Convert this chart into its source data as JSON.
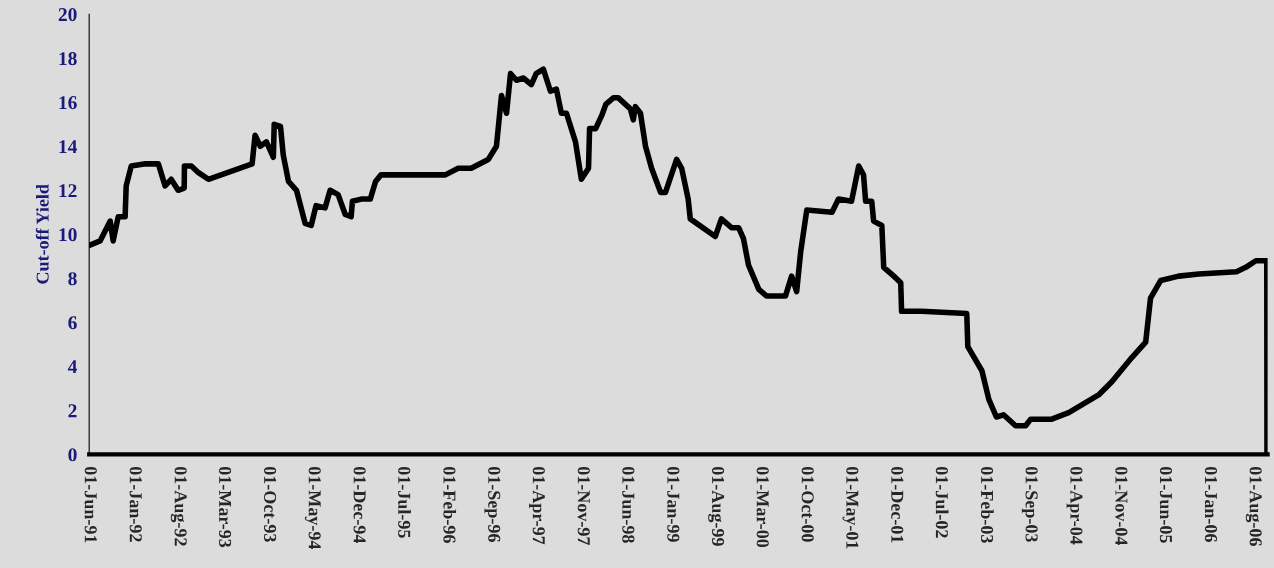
{
  "chart_data": {
    "type": "line",
    "ylabel": "Cut-off Yield",
    "x": [
      "1991-06-01",
      "1991-07-23",
      "1991-09-09",
      "1991-09-23",
      "1991-10-17",
      "1991-11-19",
      "1991-11-24",
      "1991-12-18",
      "1992-02-24",
      "1992-04-25",
      "1992-05-27",
      "1992-06-25",
      "1992-07-28",
      "1992-08-26",
      "1992-08-27",
      "1992-09-29",
      "1992-11-02",
      "1992-12-19",
      "1993-07-15",
      "1993-07-29",
      "1993-08-23",
      "1993-09-21",
      "1993-10-24",
      "1993-10-28",
      "1993-11-27",
      "1993-12-10",
      "1994-01-04",
      "1994-02-11",
      "1994-03-24",
      "1994-04-22",
      "1994-05-15",
      "1994-06-27",
      "1994-07-21",
      "1994-08-28",
      "1994-10-01",
      "1994-10-29",
      "1994-11-04",
      "1994-12-16",
      "1995-01-28",
      "1995-02-22",
      "1995-03-20",
      "1996-01-20",
      "1996-03-21",
      "1996-05-22",
      "1996-08-11",
      "1996-09-19",
      "1996-10-13",
      "1996-11-06",
      "1996-11-25",
      "1996-12-23",
      "1997-01-26",
      "1997-03-04",
      "1997-03-27",
      "1997-04-30",
      "1997-06-03",
      "1997-07-01",
      "1997-07-25",
      "1997-08-18",
      "1997-09-30",
      "1997-10-28",
      "1997-12-01",
      "1997-12-06",
      "1998-01-04",
      "1998-02-02",
      "1998-02-21",
      "1998-03-29",
      "1998-04-22",
      "1998-06-18",
      "1998-07-02",
      "1998-07-12",
      "1998-08-05",
      "1998-08-29",
      "1998-09-27",
      "1998-11-09",
      "1998-12-02",
      "1999-01-24",
      "1999-02-17",
      "1999-03-20",
      "1999-03-30",
      "1999-07-27",
      "1999-08-25",
      "1999-10-12",
      "1999-11-15",
      "1999-12-08",
      "2000-01-01",
      "2000-02-19",
      "2000-03-26",
      "2000-06-25",
      "2000-07-24",
      "2000-08-17",
      "2000-09-05",
      "2000-10-04",
      "2001-02-01",
      "2001-03-04",
      "2001-05-05",
      "2001-06-08",
      "2001-07-01",
      "2001-07-11",
      "2001-08-09",
      "2001-08-18",
      "2001-09-26",
      "2001-10-05",
      "2001-11-22",
      "2001-12-25",
      "2001-12-29",
      "2002-04-03",
      "2002-11-04",
      "2002-11-09",
      "2003-01-15",
      "2003-02-17",
      "2003-03-25",
      "2003-04-28",
      "2003-06-24",
      "2003-08-11",
      "2003-09-04",
      "2003-12-13",
      "2004-03-03",
      "2004-07-23",
      "2004-09-24",
      "2004-12-28",
      "2005-03-04",
      "2005-03-27",
      "2005-05-14",
      "2005-08-08",
      "2005-11-12",
      "2006-05-10",
      "2006-06-23",
      "2006-08-10",
      "2006-10-01",
      "2006-10-02"
    ],
    "series": [
      {
        "color": "#000000",
        "values": [
          9.5,
          9.7,
          10.6,
          9.7,
          10.8,
          10.8,
          12.2,
          13.1,
          13.2,
          13.2,
          12.2,
          12.5,
          12.0,
          12.1,
          13.1,
          13.1,
          12.8,
          12.5,
          13.2,
          14.5,
          14.0,
          14.2,
          13.5,
          15.0,
          14.9,
          13.6,
          12.4,
          12.0,
          10.5,
          10.4,
          11.3,
          11.2,
          12.0,
          11.8,
          10.9,
          10.8,
          11.5,
          11.6,
          11.6,
          12.4,
          12.7,
          12.7,
          13.0,
          13.0,
          13.4,
          14.0,
          16.3,
          15.5,
          17.3,
          17.0,
          17.1,
          16.8,
          17.3,
          17.5,
          16.5,
          16.6,
          15.5,
          15.5,
          14.2,
          12.5,
          13.0,
          14.8,
          14.8,
          15.4,
          15.9,
          16.2,
          16.2,
          15.7,
          15.2,
          15.8,
          15.5,
          14.0,
          13.0,
          11.9,
          11.9,
          13.4,
          13.0,
          11.6,
          10.7,
          9.9,
          10.7,
          10.3,
          10.3,
          9.8,
          8.6,
          7.5,
          7.2,
          7.2,
          8.1,
          7.4,
          9.2,
          11.1,
          11.0,
          11.6,
          11.5,
          13.1,
          12.7,
          11.5,
          11.5,
          10.6,
          10.4,
          8.5,
          8.1,
          7.8,
          6.5,
          6.5,
          6.4,
          4.9,
          3.8,
          2.5,
          1.7,
          1.8,
          1.3,
          1.3,
          1.6,
          1.6,
          1.9,
          2.7,
          3.3,
          4.4,
          5.1,
          7.1,
          7.9,
          8.1,
          8.2,
          8.3,
          8.5,
          8.8,
          8.8,
          0.0
        ]
      }
    ],
    "xlim": [
      "1991-06-01",
      "2006-10-05"
    ],
    "xticks": [
      {
        "value": "1991-06-01",
        "label": "01-Jun-91"
      },
      {
        "value": "1992-01-01",
        "label": "01-Jan-92"
      },
      {
        "value": "1992-08-01",
        "label": "01-Aug-92"
      },
      {
        "value": "1993-03-01",
        "label": "01-Mar-93"
      },
      {
        "value": "1993-10-01",
        "label": "01-Oct-93"
      },
      {
        "value": "1994-05-01",
        "label": "01-May-94"
      },
      {
        "value": "1994-12-01",
        "label": "01-Dec-94"
      },
      {
        "value": "1995-07-01",
        "label": "01-Jul-95"
      },
      {
        "value": "1996-02-01",
        "label": "01-Feb-96"
      },
      {
        "value": "1996-09-01",
        "label": "01-Sep-96"
      },
      {
        "value": "1997-04-01",
        "label": "01-Apr-97"
      },
      {
        "value": "1997-11-01",
        "label": "01-Nov-97"
      },
      {
        "value": "1998-06-01",
        "label": "01-Jun-98"
      },
      {
        "value": "1999-01-01",
        "label": "01-Jan-99"
      },
      {
        "value": "1999-08-01",
        "label": "01-Aug-99"
      },
      {
        "value": "2000-03-01",
        "label": "01-Mar-00"
      },
      {
        "value": "2000-10-01",
        "label": "01-Oct-00"
      },
      {
        "value": "2001-05-01",
        "label": "01-May-01"
      },
      {
        "value": "2001-12-01",
        "label": "01-Dec-01"
      },
      {
        "value": "2002-07-01",
        "label": "01-Jul-02"
      },
      {
        "value": "2003-02-01",
        "label": "01-Feb-03"
      },
      {
        "value": "2003-09-01",
        "label": "01-Sep-03"
      },
      {
        "value": "2004-04-01",
        "label": "01-Apr-04"
      },
      {
        "value": "2004-11-01",
        "label": "01-Nov-04"
      },
      {
        "value": "2005-06-01",
        "label": "01-Jun-05"
      },
      {
        "value": "2006-01-01",
        "label": "01-Jan-06"
      },
      {
        "value": "2006-08-01",
        "label": "01-Aug-06"
      }
    ],
    "ylim": [
      0,
      20
    ],
    "yticks": [
      0,
      2,
      4,
      6,
      8,
      10,
      12,
      14,
      16,
      18,
      20
    ],
    "grid": false,
    "legend": false,
    "marker": "none",
    "line_style": "solid"
  }
}
